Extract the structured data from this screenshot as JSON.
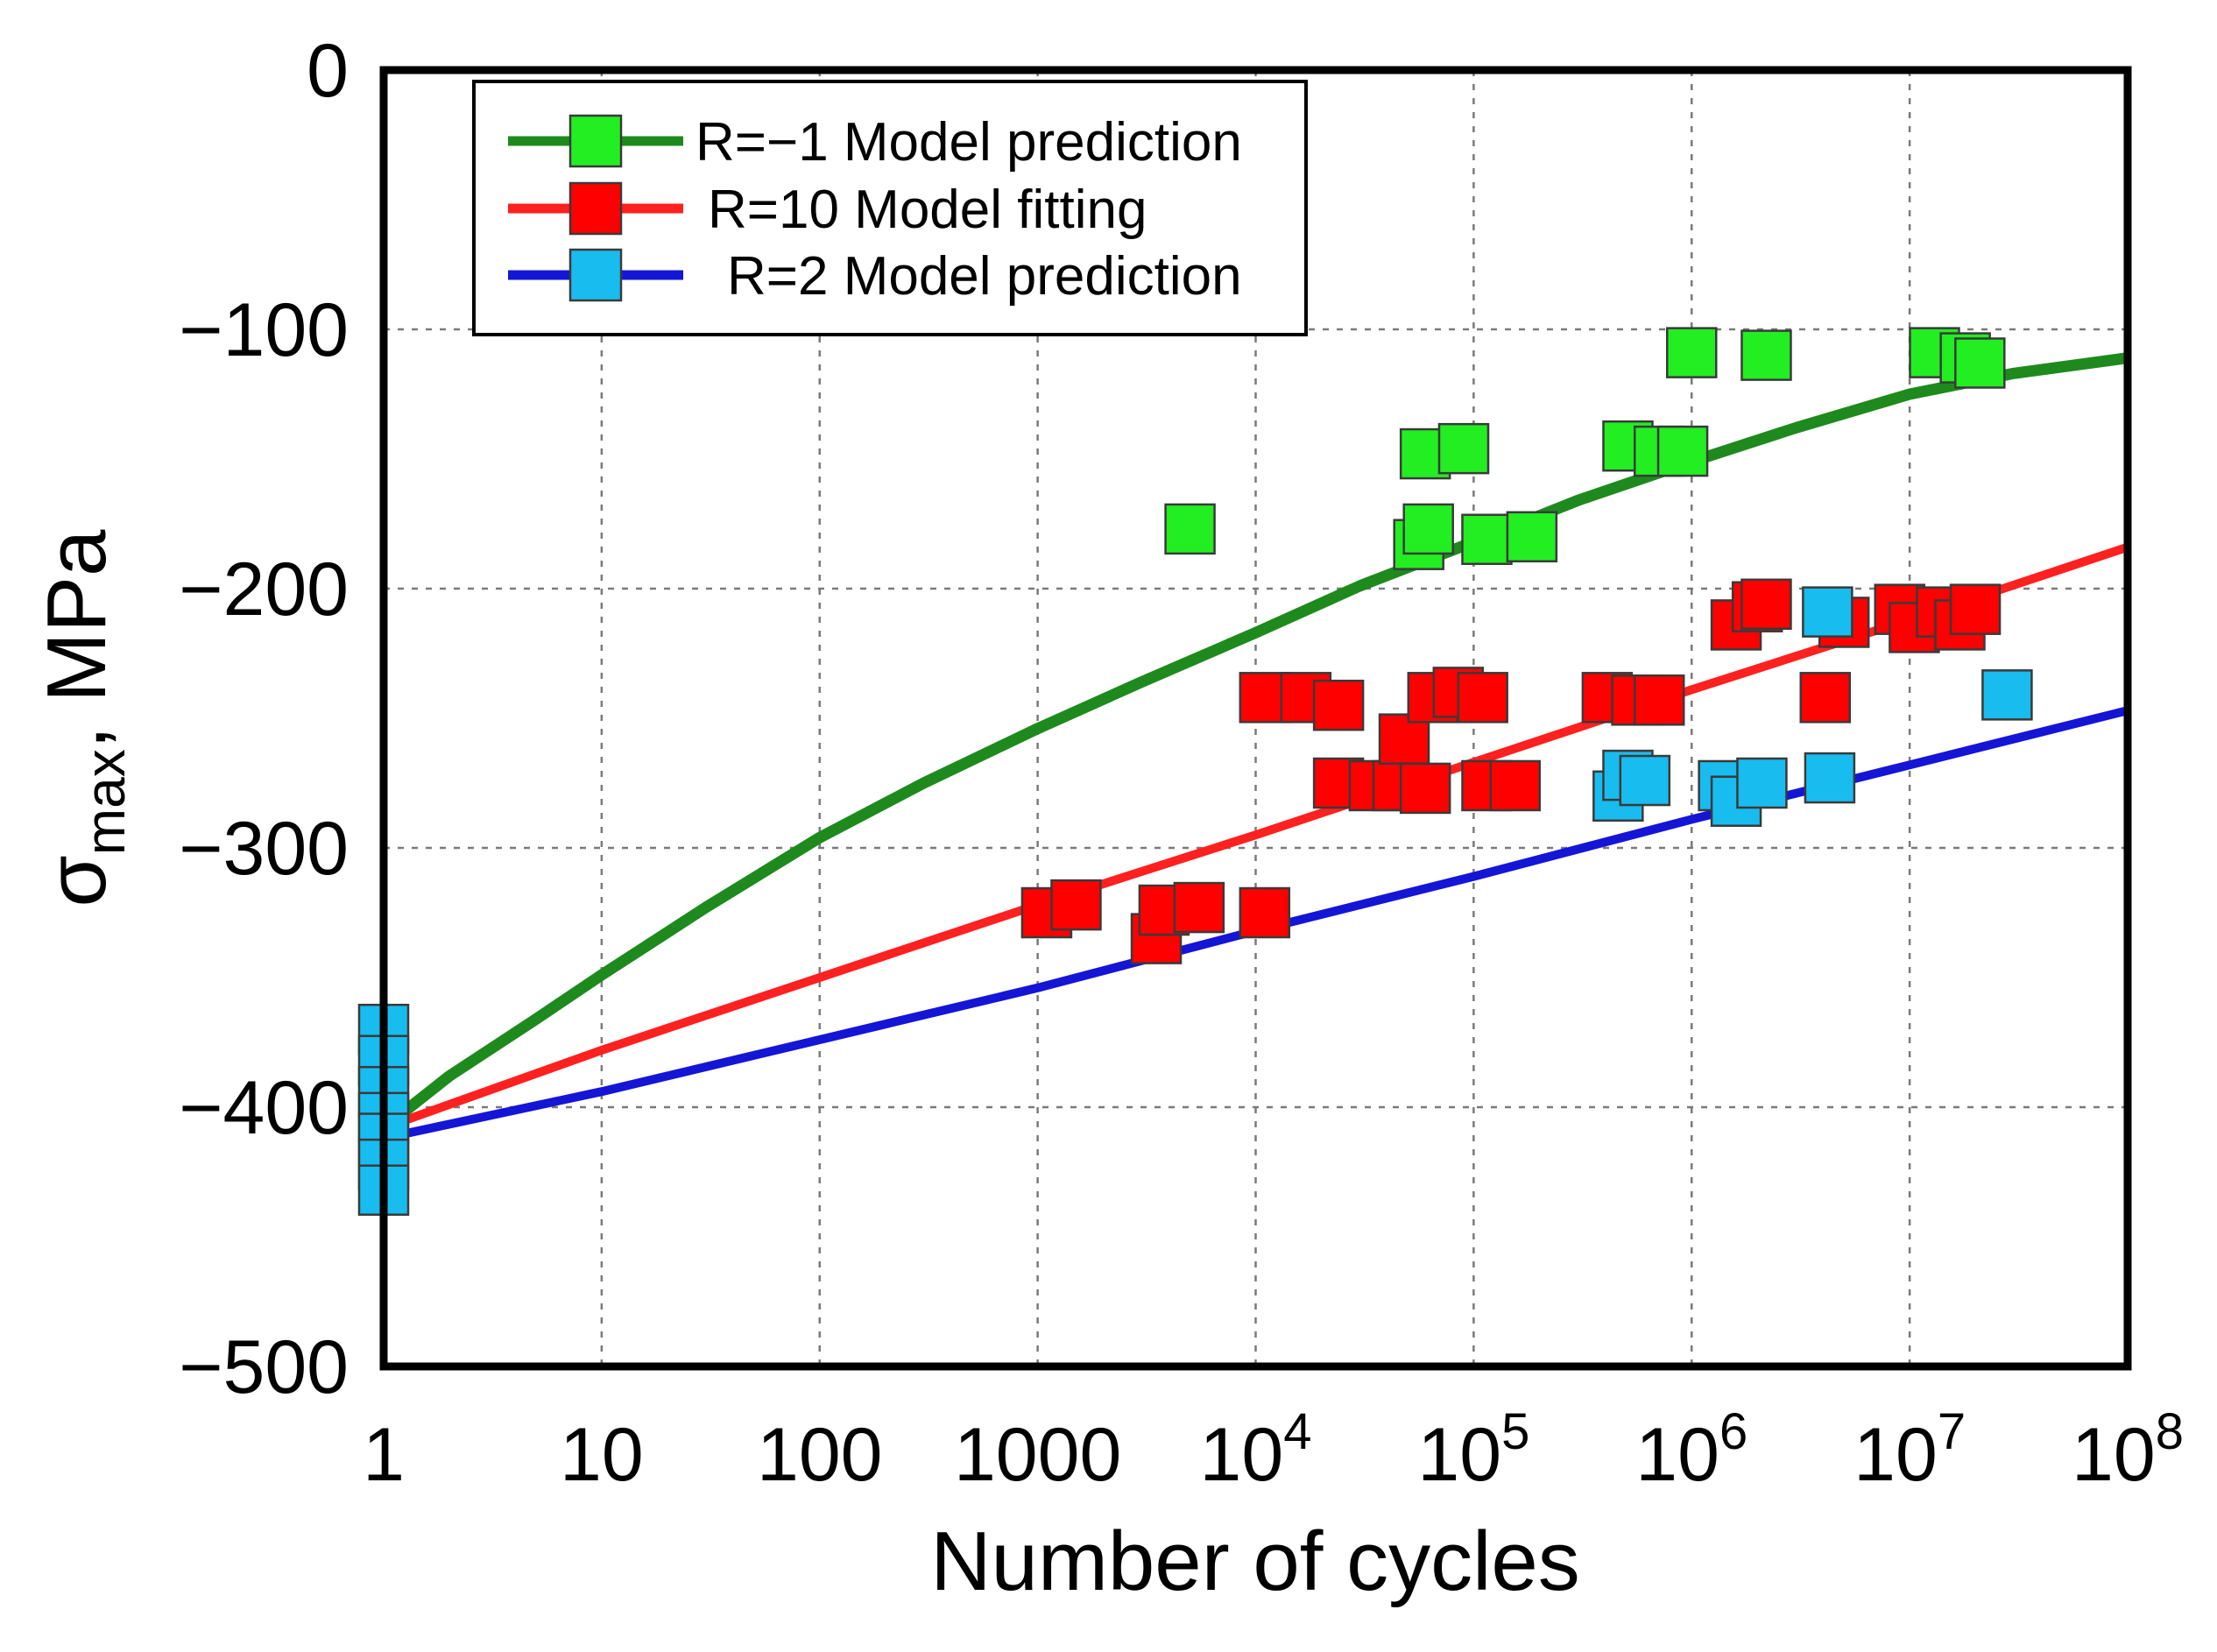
{
  "chart_data": {
    "type": "scatter",
    "xscale": "log",
    "xlim": [
      1,
      100000000
    ],
    "ylim": [
      -500,
      0
    ],
    "grid": true,
    "legend_position": "top-left",
    "xlabel": "Number of cycles",
    "ylabel_main": "σ",
    "ylabel_sub": "max",
    "ylabel_rest": ", MPa",
    "x_ticks": [
      {
        "value": 1,
        "base": "1",
        "exp": ""
      },
      {
        "value": 10,
        "base": "10",
        "exp": ""
      },
      {
        "value": 100,
        "base": "100",
        "exp": ""
      },
      {
        "value": 1000,
        "base": "1000",
        "exp": ""
      },
      {
        "value": 10000,
        "base": "10",
        "exp": "4"
      },
      {
        "value": 100000,
        "base": "10",
        "exp": "5"
      },
      {
        "value": 1000000,
        "base": "10",
        "exp": "6"
      },
      {
        "value": 10000000,
        "base": "10",
        "exp": "7"
      },
      {
        "value": 100000000,
        "base": "10",
        "exp": "8"
      }
    ],
    "y_ticks": [
      {
        "value": 0,
        "label": "0"
      },
      {
        "value": -100,
        "label": "−100"
      },
      {
        "value": -200,
        "label": "−200"
      },
      {
        "value": -300,
        "label": "−300"
      },
      {
        "value": -400,
        "label": "−400"
      },
      {
        "value": -500,
        "label": "−500"
      }
    ],
    "series": [
      {
        "name": "R=−1 Model prediction",
        "line_color": "#1e8a1e",
        "marker_color": "#22ee22",
        "curve": [
          [
            1,
            -408
          ],
          [
            2,
            -388
          ],
          [
            5,
            -366
          ],
          [
            10,
            -349
          ],
          [
            30,
            -323
          ],
          [
            100,
            -296
          ],
          [
            300,
            -275
          ],
          [
            1000,
            -254
          ],
          [
            3000,
            -236
          ],
          [
            10000,
            -217
          ],
          [
            30000,
            -199
          ],
          [
            100000,
            -182
          ],
          [
            300000,
            -166
          ],
          [
            1000000,
            -151
          ],
          [
            3000000,
            -138
          ],
          [
            10000000,
            -125
          ],
          [
            30000000,
            -117
          ],
          [
            100000000,
            -111
          ]
        ],
        "points": [
          [
            5000,
            -177
          ],
          [
            56000,
            -183
          ],
          [
            62000,
            -177
          ],
          [
            60000,
            -148
          ],
          [
            90000,
            -146
          ],
          [
            115000,
            -181
          ],
          [
            185000,
            -180
          ],
          [
            510000,
            -145
          ],
          [
            710000,
            -147
          ],
          [
            910000,
            -147
          ],
          [
            1000000,
            -109
          ],
          [
            2200000,
            -110
          ],
          [
            13000000,
            -109
          ],
          [
            18000000,
            -111
          ],
          [
            21000000,
            -113
          ]
        ]
      },
      {
        "name": "R=10 Model fitting",
        "line_color": "#ff2020",
        "marker_color": "#ff0000",
        "curve": [
          [
            1,
            -408
          ],
          [
            10,
            -378
          ],
          [
            100,
            -350
          ],
          [
            1000,
            -322
          ],
          [
            10000,
            -295
          ],
          [
            100000,
            -267
          ],
          [
            1000000,
            -239
          ],
          [
            10000000,
            -212
          ],
          [
            100000000,
            -184
          ]
        ],
        "points": [
          [
            1100,
            -325
          ],
          [
            1500,
            -322
          ],
          [
            3500,
            -335
          ],
          [
            3800,
            -324
          ],
          [
            5500,
            -323
          ],
          [
            11000,
            -325
          ],
          [
            11000,
            -242
          ],
          [
            17000,
            -242
          ],
          [
            24000,
            -245
          ],
          [
            24000,
            -275
          ],
          [
            35000,
            -276
          ],
          [
            45000,
            -276
          ],
          [
            48000,
            -258
          ],
          [
            60000,
            -277
          ],
          [
            65000,
            -242
          ],
          [
            85000,
            -240
          ],
          [
            110000,
            -242
          ],
          [
            115000,
            -276
          ],
          [
            155000,
            -276
          ],
          [
            410000,
            -242
          ],
          [
            560000,
            -243
          ],
          [
            710000,
            -243
          ],
          [
            1600000,
            -214
          ],
          [
            2000000,
            -207
          ],
          [
            2200000,
            -206
          ],
          [
            4100000,
            -242
          ],
          [
            5000000,
            -213
          ],
          [
            9000000,
            -208
          ],
          [
            10500000,
            -215
          ],
          [
            14000000,
            -209
          ],
          [
            17000000,
            -214
          ],
          [
            20000000,
            -208
          ]
        ]
      },
      {
        "name": "R=2 Model prediction",
        "line_color": "#1515d6",
        "marker_color": "#19bcee",
        "curve": [
          [
            1,
            -412
          ],
          [
            10,
            -394
          ],
          [
            100,
            -374
          ],
          [
            1000,
            -354
          ],
          [
            10000,
            -332
          ],
          [
            100000,
            -311
          ],
          [
            1000000,
            -289
          ],
          [
            10000000,
            -268
          ],
          [
            100000000,
            -247
          ]
        ],
        "points": [
          [
            1,
            -370
          ],
          [
            1,
            -382
          ],
          [
            1,
            -394
          ],
          [
            1,
            -404
          ],
          [
            1,
            -412
          ],
          [
            1,
            -422
          ],
          [
            1,
            -432
          ],
          [
            460000,
            -280
          ],
          [
            510000,
            -272
          ],
          [
            610000,
            -274
          ],
          [
            1400000,
            -276
          ],
          [
            1600000,
            -282
          ],
          [
            2100000,
            -275
          ],
          [
            4200000,
            -209
          ],
          [
            4300000,
            -273
          ],
          [
            28000000,
            -241
          ]
        ]
      }
    ]
  }
}
